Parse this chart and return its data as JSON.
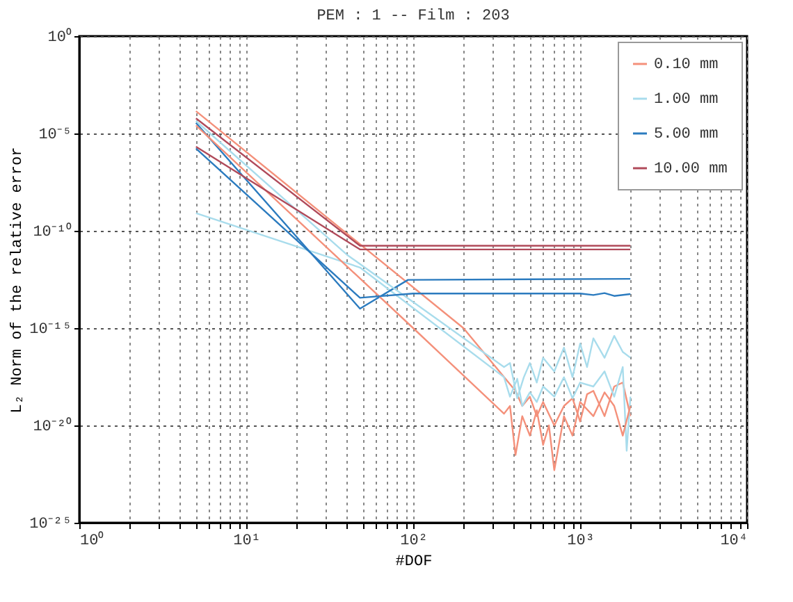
{
  "chart_data": {
    "type": "line",
    "title": "PEM : 1 -- Film : 203",
    "xlabel": "#DOF",
    "ylabel": "L₂ Norm of the relative error",
    "log": "xy",
    "grid": true,
    "legend": "top right",
    "line_style": "solid",
    "marker": "none",
    "xlim": [
      1,
      10000
    ],
    "ylim": [
      1e-25,
      1
    ],
    "xticks": [
      {
        "value": 1,
        "label": "10⁰"
      },
      {
        "value": 2,
        "label": null
      },
      {
        "value": 3,
        "label": null
      },
      {
        "value": 4,
        "label": null
      },
      {
        "value": 5,
        "label": null
      },
      {
        "value": 6,
        "label": null
      },
      {
        "value": 7,
        "label": null
      },
      {
        "value": 8,
        "label": null
      },
      {
        "value": 9,
        "label": null
      },
      {
        "value": 10,
        "label": "10¹"
      },
      {
        "value": 20,
        "label": null
      },
      {
        "value": 30,
        "label": null
      },
      {
        "value": 40,
        "label": null
      },
      {
        "value": 50,
        "label": null
      },
      {
        "value": 60,
        "label": null
      },
      {
        "value": 70,
        "label": null
      },
      {
        "value": 80,
        "label": null
      },
      {
        "value": 90,
        "label": null
      },
      {
        "value": 100,
        "label": "10²"
      },
      {
        "value": 200,
        "label": null
      },
      {
        "value": 300,
        "label": null
      },
      {
        "value": 400,
        "label": null
      },
      {
        "value": 500,
        "label": null
      },
      {
        "value": 600,
        "label": null
      },
      {
        "value": 700,
        "label": null
      },
      {
        "value": 800,
        "label": null
      },
      {
        "value": 900,
        "label": null
      },
      {
        "value": 1000,
        "label": "10³"
      },
      {
        "value": 2000,
        "label": null
      },
      {
        "value": 3000,
        "label": null
      },
      {
        "value": 4000,
        "label": null
      },
      {
        "value": 5000,
        "label": null
      },
      {
        "value": 6000,
        "label": null
      },
      {
        "value": 7000,
        "label": null
      },
      {
        "value": 8000,
        "label": null
      },
      {
        "value": 9000,
        "label": null
      },
      {
        "value": 10000,
        "label": "10⁴"
      }
    ],
    "yticks": [
      {
        "value": 1e-25,
        "label": "10⁻²⁵"
      },
      {
        "value": 1e-20,
        "label": "10⁻²⁰"
      },
      {
        "value": 1e-15,
        "label": "10⁻¹⁵"
      },
      {
        "value": 1e-10,
        "label": "10⁻¹⁰"
      },
      {
        "value": 1e-05,
        "label": "10⁻⁵"
      },
      {
        "value": 1,
        "label": "10⁰"
      }
    ],
    "series": [
      {
        "name": "0.10 mm",
        "color": "#f4907a",
        "x": [
          5,
          200,
          410,
          450,
          500,
          550,
          600,
          700,
          800,
          900,
          1000,
          1100,
          1200,
          1400,
          1600,
          1800,
          2000
        ],
        "values": [
          0.00014,
          1e-15,
          6e-19,
          1e-19,
          3e-19,
          3e-20,
          1.6e-19,
          1e-20,
          1e-19,
          2.5e-19,
          1.6e-20,
          4e-19,
          6e-19,
          3e-20,
          1e-18,
          1.6e-18,
          3e-20
        ]
      },
      {
        "name": "1.00 mm",
        "color": "#a8dcec",
        "x": [
          5,
          48,
          350,
          380,
          420,
          450,
          500,
          550,
          600,
          700,
          800,
          900,
          1000,
          1200,
          1400,
          1600,
          1800,
          1900,
          2000
        ],
        "values": [
          8e-10,
          1.3e-12,
          3e-18,
          3e-19,
          2.5e-18,
          1e-19,
          5e-19,
          1.6e-19,
          1e-18,
          3e-19,
          3e-18,
          2.5e-19,
          1.6e-18,
          1e-18,
          6e-18,
          3e-19,
          1e-17,
          5e-22,
          3e-19
        ]
      },
      {
        "name": "5.00 mm",
        "color": "#2b7bbf",
        "x": [
          5,
          48,
          93,
          2000
        ],
        "values": [
          3.5e-05,
          1e-14,
          3e-13,
          3.4e-13
        ]
      },
      {
        "name": "10.00 mm",
        "color": "#b04a5a",
        "x": [
          5,
          48,
          2000
        ],
        "values": [
          6e-05,
          1.7e-11,
          1.7e-11
        ]
      },
      {
        "color": "#f4907a",
        "x": [
          5,
          100,
          350,
          380,
          410,
          450,
          500,
          550,
          600,
          650,
          700,
          800,
          900,
          1000,
          1200,
          1400,
          1600,
          1800,
          2000
        ],
        "values": [
          2.6e-05,
          1e-15,
          4e-20,
          1e-19,
          3e-22,
          3e-20,
          3e-21,
          6e-20,
          1e-21,
          1e-20,
          5e-23,
          3e-20,
          3e-21,
          1.6e-19,
          3e-20,
          5e-19,
          1e-19,
          3e-21,
          1e-19
        ]
      },
      {
        "color": "#a8dcec",
        "x": [
          5,
          40,
          350,
          380,
          420,
          460,
          500,
          550,
          600,
          700,
          800,
          900,
          1000,
          1100,
          1200,
          1400,
          1600,
          1800,
          2000
        ],
        "values": [
          4.4e-05,
          6e-12,
          1e-17,
          1.6e-17,
          2.5e-19,
          3e-18,
          1.6e-17,
          1.6e-18,
          3e-17,
          6e-18,
          1e-16,
          3e-18,
          1.6e-16,
          1e-17,
          3e-16,
          3e-17,
          4e-16,
          6e-17,
          3e-17
        ]
      },
      {
        "color": "#2b7bbf",
        "x": [
          5,
          48,
          100,
          1000,
          1200,
          1400,
          1600,
          2000
        ],
        "values": [
          1.7e-06,
          3.6e-14,
          6e-14,
          6e-14,
          5e-14,
          6.3e-14,
          4.5e-14,
          5.6e-14
        ]
      },
      {
        "color": "#b04a5a",
        "x": [
          5,
          48,
          2000
        ],
        "values": [
          2.1e-06,
          1.1e-11,
          1.1e-11
        ]
      }
    ]
  }
}
